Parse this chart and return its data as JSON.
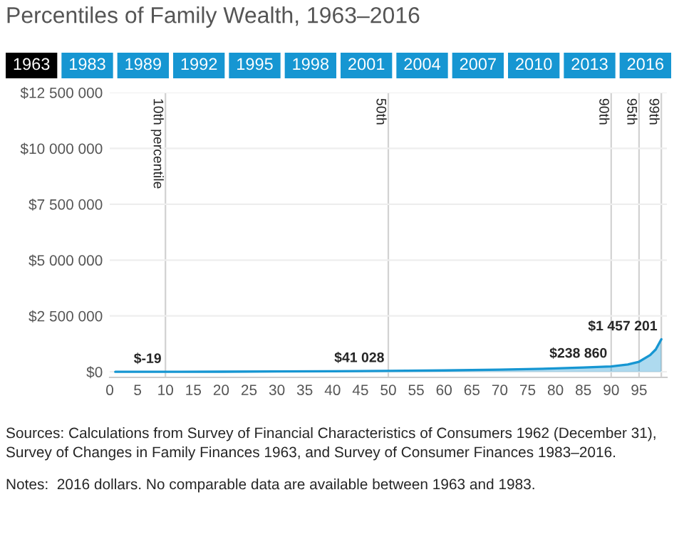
{
  "chart_data": {
    "type": "area",
    "title": "Percentiles of Family Wealth, 1963–2016",
    "x": [
      1,
      5,
      10,
      20,
      30,
      40,
      50,
      60,
      70,
      80,
      85,
      90,
      93,
      95,
      97,
      98,
      99
    ],
    "series": [
      {
        "color": "#1696d2",
        "values": [
          0,
          0,
          -19,
          5000,
          15000,
          27000,
          41028,
          62000,
          95000,
          150000,
          190000,
          238860,
          330000,
          450000,
          750000,
          1000000,
          1457201
        ],
        "value_labels": [
          null,
          null,
          "$-19",
          null,
          null,
          null,
          "$41 028",
          null,
          null,
          null,
          null,
          "$238 860",
          null,
          null,
          null,
          null,
          "$1 457 201"
        ]
      }
    ],
    "xlim": [
      0,
      100
    ],
    "xticks": [
      0,
      5,
      10,
      15,
      20,
      25,
      30,
      35,
      40,
      45,
      50,
      55,
      60,
      65,
      70,
      75,
      80,
      85,
      90,
      95
    ],
    "ylim": [
      -250000,
      12500000
    ],
    "yticks": [
      {
        "value": 0,
        "label": "$0"
      },
      {
        "value": 2500000,
        "label": "$2 500 000"
      },
      {
        "value": 5000000,
        "label": "$5 000 000"
      },
      {
        "value": 7500000,
        "label": "$7 500 000"
      },
      {
        "value": 10000000,
        "label": "$10 000 000"
      },
      {
        "value": 12500000,
        "label": "$12 500 000"
      }
    ],
    "grid": "y",
    "ref_lines": [
      {
        "axis": "x",
        "value": 10,
        "label": "10th percentile",
        "color": "#d2d2d2"
      },
      {
        "axis": "x",
        "value": 50,
        "label": "50th",
        "color": "#d2d2d2"
      },
      {
        "axis": "x",
        "value": 90,
        "label": "90th",
        "color": "#d2d2d2"
      },
      {
        "axis": "x",
        "value": 95,
        "label": "95th",
        "color": "#d2d2d2"
      },
      {
        "axis": "x",
        "value": 99,
        "label": "99th",
        "color": "#d2d2d2"
      }
    ],
    "annotations": [
      "1963",
      "1983",
      "1989",
      "1992",
      "1995",
      "1998",
      "2001",
      "2004",
      "2007",
      "2010",
      "2013",
      "2016",
      "Sources: Calculations from Survey of Financial Characteristics of Consumers 1962 (December 31), Survey of Changes in Family Finances 1963, and Survey of Consumer Finances 1983–2016.",
      "Notes:  2016 dollars. No comparable data are available between 1963 and 1983."
    ]
  }
}
